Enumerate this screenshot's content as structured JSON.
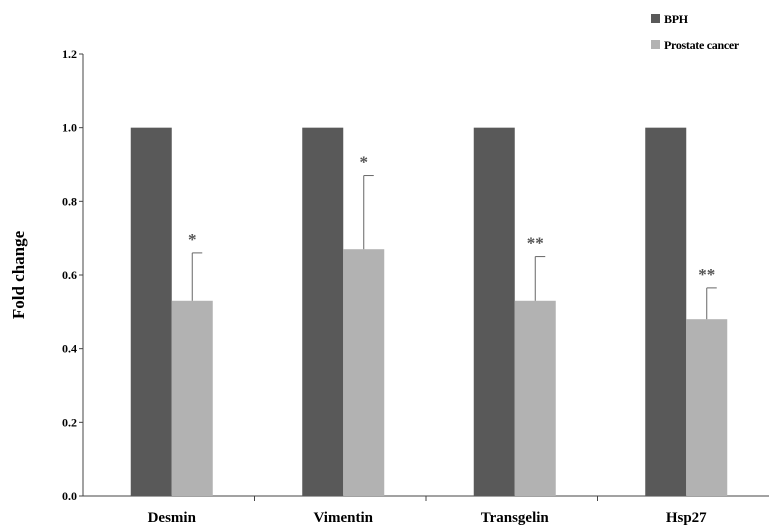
{
  "chart_data": {
    "type": "bar",
    "title": "",
    "xlabel": "",
    "ylabel": "Fold change",
    "ylim": [
      0,
      1.2
    ],
    "yticks": [
      "0.0",
      "0.2",
      "0.4",
      "0.6",
      "0.8",
      "1.0",
      "1.2"
    ],
    "categories": [
      "Desmin",
      "Vimentin",
      "Transgelin",
      "Hsp27"
    ],
    "series": [
      {
        "name": "BPH",
        "color": "#595959",
        "values": [
          1.0,
          1.0,
          1.0,
          1.0
        ],
        "errors": [
          0,
          0,
          0,
          0
        ]
      },
      {
        "name": "Prostate cancer",
        "color": "#b2b2b2",
        "values": [
          0.53,
          0.67,
          0.53,
          0.48
        ],
        "errors": [
          0.13,
          0.2,
          0.12,
          0.085
        ]
      }
    ],
    "significance": [
      "*",
      "*",
      "**",
      "**"
    ],
    "grid": false,
    "legend_position": "top-right"
  }
}
